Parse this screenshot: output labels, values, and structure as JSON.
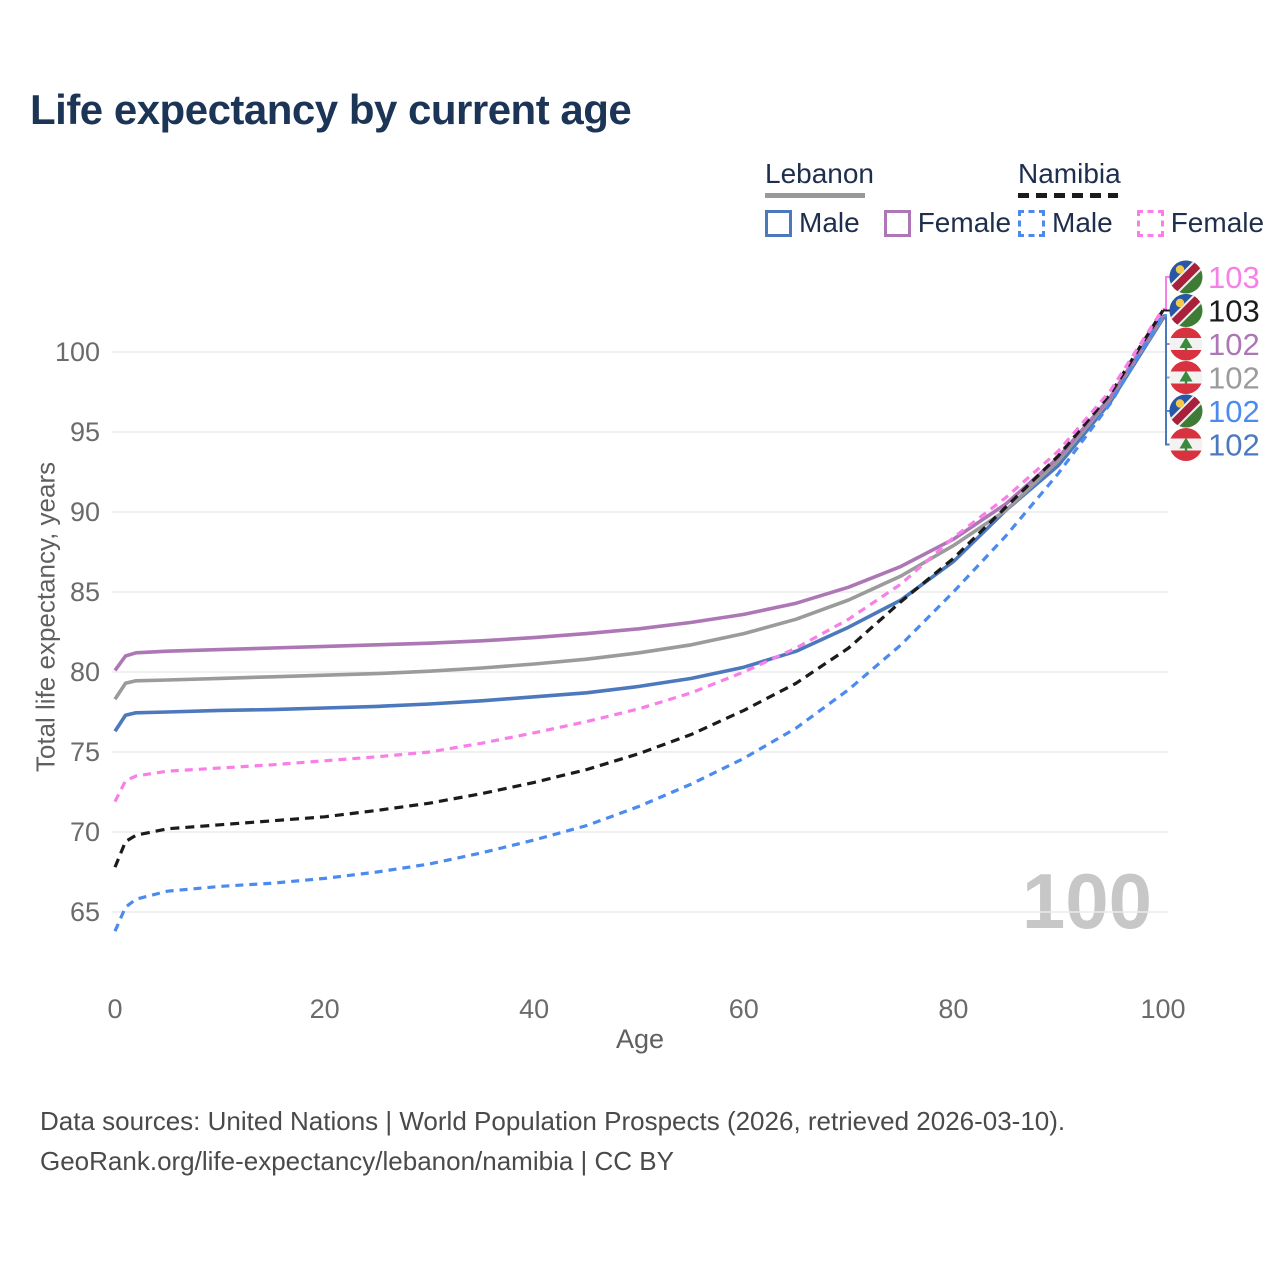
{
  "title": "Life expectancy by current age",
  "legend": {
    "groups": [
      {
        "country": "Lebanon",
        "line_style": "solid",
        "line_color": "#999999",
        "items": [
          {
            "label": "Male",
            "color": "#4c79bd",
            "dashed": false
          },
          {
            "label": "Female",
            "color": "#ad77b5",
            "dashed": false
          }
        ]
      },
      {
        "country": "Namibia",
        "line_style": "dashed",
        "line_color": "#1b1b1b",
        "items": [
          {
            "label": "Male",
            "color": "#4b8bf0",
            "dashed": true
          },
          {
            "label": "Female",
            "color": "#f87fe8",
            "dashed": true
          }
        ]
      }
    ]
  },
  "chart_data": {
    "type": "line",
    "title": "Life expectancy by current age",
    "xlabel": "Age",
    "ylabel": "Total life expectancy, years",
    "xlim": [
      0,
      100
    ],
    "ylim": [
      63,
      104
    ],
    "xticks": [
      0,
      20,
      40,
      60,
      80,
      100
    ],
    "yticks": [
      65,
      70,
      75,
      80,
      85,
      90,
      95,
      100
    ],
    "grid": "horizontal",
    "legend_position": "top-right",
    "watermark": "100",
    "ages": [
      0,
      1,
      2,
      5,
      10,
      15,
      20,
      25,
      30,
      35,
      40,
      45,
      50,
      55,
      60,
      65,
      70,
      75,
      80,
      85,
      90,
      95,
      100
    ],
    "series": [
      {
        "name": "Lebanon Male",
        "country": "lebanon",
        "sex": "male",
        "style": "solid",
        "color": "#4c79bd",
        "end_label": "102",
        "values": [
          76.3,
          77.3,
          77.45,
          77.5,
          77.6,
          77.65,
          77.75,
          77.85,
          78.0,
          78.2,
          78.45,
          78.7,
          79.1,
          79.6,
          80.3,
          81.3,
          82.8,
          84.5,
          86.9,
          90.1,
          92.9,
          96.9,
          102.1
        ]
      },
      {
        "name": "Lebanon",
        "country": "lebanon",
        "sex": "both",
        "style": "solid",
        "color": "#9b9b9b",
        "end_label": "102",
        "values": [
          78.3,
          79.3,
          79.45,
          79.5,
          79.6,
          79.7,
          79.8,
          79.9,
          80.05,
          80.25,
          80.5,
          80.8,
          81.2,
          81.7,
          82.4,
          83.3,
          84.5,
          86.0,
          87.9,
          90.1,
          93.2,
          97.1,
          102.2
        ]
      },
      {
        "name": "Lebanon Female",
        "country": "lebanon",
        "sex": "female",
        "style": "solid",
        "color": "#ad77b5",
        "end_label": "102",
        "values": [
          80.1,
          81.0,
          81.2,
          81.3,
          81.4,
          81.5,
          81.6,
          81.7,
          81.8,
          81.95,
          82.15,
          82.4,
          82.7,
          83.1,
          83.6,
          84.3,
          85.3,
          86.6,
          88.3,
          90.5,
          93.4,
          97.2,
          102.3
        ]
      },
      {
        "name": "Namibia Male",
        "country": "namibia",
        "sex": "male",
        "style": "dashed",
        "color": "#4b8bf0",
        "end_label": "102",
        "values": [
          63.8,
          65.3,
          65.8,
          66.3,
          66.6,
          66.8,
          67.1,
          67.5,
          68.0,
          68.7,
          69.5,
          70.4,
          71.6,
          73.0,
          74.6,
          76.5,
          78.9,
          81.7,
          85.0,
          88.5,
          92.4,
          96.8,
          102.3
        ]
      },
      {
        "name": "Namibia",
        "country": "namibia",
        "sex": "both",
        "style": "dashed",
        "color": "#1b1b1b",
        "end_label": "103",
        "values": [
          67.8,
          69.4,
          69.8,
          70.2,
          70.45,
          70.7,
          70.95,
          71.35,
          71.8,
          72.4,
          73.1,
          73.9,
          74.9,
          76.1,
          77.6,
          79.3,
          81.5,
          84.4,
          87.1,
          90.3,
          93.5,
          97.4,
          102.6
        ]
      },
      {
        "name": "Namibia Female",
        "country": "namibia",
        "sex": "female",
        "style": "dashed",
        "color": "#f87fe8",
        "end_label": "103",
        "values": [
          71.9,
          73.2,
          73.5,
          73.8,
          74.0,
          74.2,
          74.45,
          74.7,
          75.0,
          75.55,
          76.2,
          76.9,
          77.7,
          78.7,
          80.0,
          81.5,
          83.3,
          85.5,
          88.4,
          90.9,
          93.8,
          97.6,
          102.7
        ]
      }
    ],
    "end_labels": [
      {
        "flag": "namibia",
        "value": "103",
        "color": "#f87fe8",
        "series": "Namibia Female"
      },
      {
        "flag": "namibia",
        "value": "103",
        "color": "#1b1b1b",
        "series": "Namibia"
      },
      {
        "flag": "lebanon",
        "value": "102",
        "color": "#ad77b5",
        "series": "Lebanon Female"
      },
      {
        "flag": "lebanon",
        "value": "102",
        "color": "#9b9b9b",
        "series": "Lebanon"
      },
      {
        "flag": "namibia",
        "value": "102",
        "color": "#4b8bf0",
        "series": "Namibia Male"
      },
      {
        "flag": "lebanon",
        "value": "102",
        "color": "#4c79bd",
        "series": "Lebanon Male"
      }
    ]
  },
  "footer": {
    "line1": "Data sources: United Nations | World Population Prospects (2026, retrieved 2026-03-10).",
    "line2": "GeoRank.org/life-expectancy/lebanon/namibia | CC BY"
  }
}
